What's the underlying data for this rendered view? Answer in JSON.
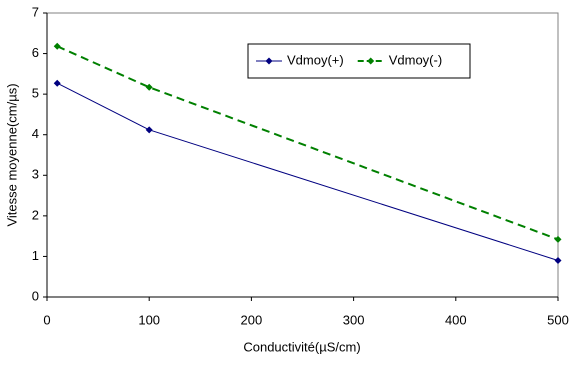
{
  "chart_data": {
    "type": "line",
    "x_label": "Conductivité(µS/cm)",
    "y_label": "Vitesse moyenne(cm/µs)",
    "x": [
      10,
      100,
      500
    ],
    "series": [
      {
        "name": "Vdmoy(+)",
        "color": "#000080",
        "line_style": "solid",
        "marker": "diamond",
        "values": [
          5.27,
          4.12,
          0.9
        ]
      },
      {
        "name": "Vdmoy(-)",
        "color": "#008000",
        "line_style": "dashed",
        "marker": "diamond",
        "values": [
          6.18,
          5.17,
          1.42
        ]
      }
    ],
    "xlim": [
      0,
      500
    ],
    "xticks": [
      0,
      100,
      200,
      300,
      400,
      500
    ],
    "ylim": [
      0,
      7
    ],
    "yticks": [
      0,
      1,
      2,
      3,
      4,
      5,
      6,
      7
    ],
    "grid": false,
    "legend": "upper right"
  }
}
